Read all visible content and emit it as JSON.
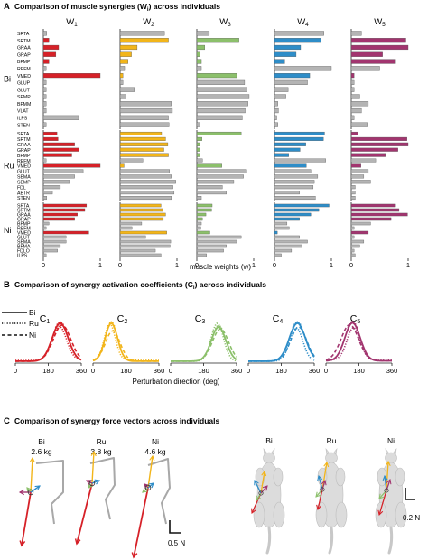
{
  "colors": {
    "W1": "#d62128",
    "W2": "#f2b51a",
    "W3": "#8cc06b",
    "W4": "#2e8dc8",
    "W5": "#a2356f",
    "gray": "#b4b4b4",
    "limb": "#a8a8a8",
    "cat": "#dcdcdc"
  },
  "panel_a": {
    "letter": "A",
    "title": "Comparison of muscle synergies (W",
    "title_sub": "i",
    "title_end": ") across individuals",
    "xlabel": "muscle weights (w)",
    "tick_labels": [
      "0",
      "1"
    ]
  },
  "panel_b": {
    "letter": "B",
    "title": "Comparison of synergy activation coefficients (C",
    "title_sub": "i",
    "title_end": ") across individuals",
    "xlabel": "Perturbation direction (deg)",
    "tick_labels": [
      "0",
      "180",
      "360"
    ],
    "legend": [
      "Bi",
      "Ru",
      "Ni"
    ]
  },
  "panel_c": {
    "letter": "C",
    "title": "Comparison of synergy force vectors across individuals",
    "scale_left": "0.5 N",
    "scale_right": "0.2 N",
    "cats_left": [
      {
        "name": "Bi",
        "mass": "2.6 kg"
      },
      {
        "name": "Ru",
        "mass": "3.8 kg"
      },
      {
        "name": "Ni",
        "mass": "4.6 kg"
      }
    ],
    "cats_right": [
      "Bi",
      "Ru",
      "Ni"
    ]
  },
  "chart_data": [
    {
      "type": "bar",
      "title": "Comparison of muscle synergies (Wi) across individuals",
      "xlabel": "muscle weights (w)",
      "xlim": [
        0,
        1
      ],
      "synergy_labels": [
        "W1",
        "W2",
        "W3",
        "W4",
        "W5"
      ],
      "subjects": [
        {
          "name": "Bi",
          "muscles": [
            "SRTA",
            "SRTM",
            "GRAA",
            "GRAP",
            "BFMP",
            "REFM",
            "VMED",
            "GLUP",
            "GLUT",
            "SEMP",
            "BFMM",
            "VLAT",
            "ILPS",
            "STEN"
          ],
          "highlight_index": [
            1,
            2,
            3,
            4,
            6
          ],
          "weights": [
            [
              0.06,
              0.1,
              0.27,
              0.22,
              0.1,
              0.05,
              1.0,
              0.05,
              0.05,
              0.05,
              0.05,
              0.05,
              0.62,
              0.05
            ],
            [
              0.78,
              0.85,
              0.3,
              0.2,
              0.14,
              0.08,
              0.05,
              0.05,
              0.25,
              0.1,
              0.9,
              0.92,
              0.85,
              0.86
            ],
            [
              0.22,
              0.74,
              0.14,
              0.06,
              0.08,
              0.08,
              0.7,
              0.84,
              0.88,
              0.92,
              0.9,
              0.85,
              0.8,
              0.05
            ],
            [
              0.87,
              0.82,
              0.46,
              0.38,
              0.18,
              1.0,
              0.62,
              0.58,
              0.24,
              0.2,
              0.06,
              0.07,
              0.04,
              0.06
            ],
            [
              0.18,
              0.96,
              1.0,
              0.55,
              0.78,
              0.5,
              0.05,
              0.05,
              0.05,
              0.15,
              0.3,
              0.18,
              0.05,
              0.28
            ]
          ]
        },
        {
          "name": "Ru",
          "muscles": [
            "SRTA",
            "SRTM",
            "GRAA",
            "GRAP",
            "BFMP",
            "REFM",
            "VMED",
            "GLUT",
            "SEMA",
            "SEMP",
            "FDL",
            "ABTR",
            "STEN"
          ],
          "highlight_index": [
            0,
            1,
            2,
            3,
            4,
            6
          ],
          "weights": [
            [
              0.24,
              0.26,
              0.55,
              0.63,
              0.5,
              0.05,
              1.0,
              0.7,
              0.55,
              0.46,
              0.3,
              0.16,
              0.06
            ],
            [
              0.73,
              0.8,
              0.84,
              0.77,
              0.85,
              0.4,
              0.07,
              0.87,
              0.9,
              0.98,
              0.93,
              0.95,
              0.9
            ],
            [
              0.78,
              0.09,
              0.06,
              0.05,
              0.06,
              0.1,
              0.44,
              0.86,
              0.82,
              0.65,
              0.45,
              0.52,
              0.08
            ],
            [
              0.88,
              0.86,
              0.55,
              0.45,
              0.25,
              0.9,
              0.56,
              0.64,
              0.76,
              0.7,
              0.68,
              0.44,
              0.72
            ],
            [
              0.12,
              0.98,
              1.0,
              0.82,
              0.6,
              0.43,
              0.17,
              0.3,
              0.22,
              0.34,
              0.07,
              0.07,
              0.07
            ]
          ]
        },
        {
          "name": "Ni",
          "muscles": [
            "SRTA",
            "SRTM",
            "GRAA",
            "GRAP",
            "BFMP",
            "REFM",
            "VMED",
            "GLUT",
            "SEMA",
            "BFMA",
            "FDLO",
            "ILPS"
          ],
          "highlight_index": [
            0,
            1,
            2,
            3,
            6
          ],
          "weights": [
            [
              0.76,
              0.73,
              0.6,
              0.55,
              0.1,
              0.05,
              0.8,
              0.4,
              0.4,
              0.3,
              0.25,
              0.05
            ],
            [
              0.72,
              0.75,
              0.8,
              0.76,
              0.38,
              0.21,
              0.82,
              0.45,
              0.89,
              0.88,
              0.62,
              0.72
            ],
            [
              0.27,
              0.26,
              0.16,
              0.1,
              0.08,
              0.07,
              0.23,
              0.78,
              0.7,
              0.52,
              0.47,
              0.17
            ],
            [
              0.96,
              0.78,
              0.64,
              0.44,
              0.22,
              0.26,
              0.05,
              0.44,
              0.58,
              0.48,
              0.3,
              0.12
            ],
            [
              0.78,
              0.84,
              0.99,
              0.7,
              0.34,
              0.05,
              0.3,
              0.05,
              0.22,
              0.15,
              0.05,
              0.07
            ]
          ]
        }
      ]
    },
    {
      "type": "line",
      "title": "Comparison of synergy activation coefficients (Ci) across individuals",
      "xlabel": "Perturbation direction (deg)",
      "xlim": [
        0,
        360
      ],
      "xticks": [
        0,
        180,
        360
      ],
      "panel_labels": [
        "C1",
        "C2",
        "C3",
        "C4",
        "C5"
      ],
      "series_names": [
        "Bi",
        "Ru",
        "Ni"
      ],
      "curves": [
        {
          "peak": [
            245,
            240,
            255
          ],
          "width": [
            44,
            40,
            48
          ],
          "height": [
            1.0,
            0.9,
            0.95
          ],
          "base": [
            0.05,
            0.07,
            0.05
          ]
        },
        {
          "peak": [
            100,
            92,
            108
          ],
          "width": [
            34,
            30,
            40
          ],
          "height": [
            1.0,
            0.95,
            0.8
          ],
          "base": [
            0.05,
            0.08,
            0.05
          ]
        },
        {
          "peak": [
            262,
            255,
            272
          ],
          "width": [
            40,
            34,
            44
          ],
          "height": [
            0.9,
            1.0,
            0.85
          ],
          "base": [
            0.05,
            0.05,
            0.05
          ]
        },
        {
          "peak": [
            268,
            262,
            275
          ],
          "width": [
            44,
            36,
            44
          ],
          "height": [
            1.0,
            0.88,
            0.9
          ],
          "base": [
            0.05,
            0.05,
            0.05
          ]
        },
        {
          "peak": [
            145,
            150,
            130
          ],
          "width": [
            42,
            36,
            48
          ],
          "height": [
            1.0,
            0.85,
            0.95
          ],
          "base": [
            0.06,
            0.08,
            0.06
          ]
        }
      ]
    }
  ]
}
